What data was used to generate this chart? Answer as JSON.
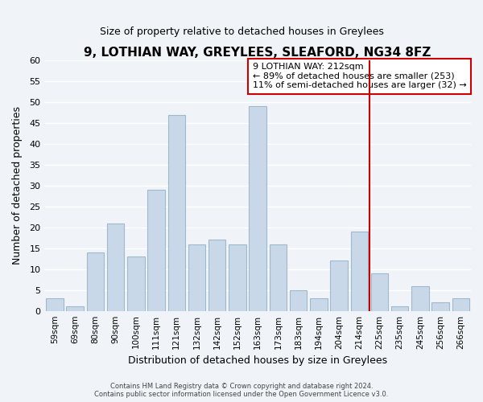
{
  "title": "9, LOTHIAN WAY, GREYLEES, SLEAFORD, NG34 8FZ",
  "subtitle": "Size of property relative to detached houses in Greylees",
  "xlabel": "Distribution of detached houses by size in Greylees",
  "ylabel": "Number of detached properties",
  "bar_labels": [
    "59sqm",
    "69sqm",
    "80sqm",
    "90sqm",
    "100sqm",
    "111sqm",
    "121sqm",
    "132sqm",
    "142sqm",
    "152sqm",
    "163sqm",
    "173sqm",
    "183sqm",
    "194sqm",
    "204sqm",
    "214sqm",
    "225sqm",
    "235sqm",
    "245sqm",
    "256sqm",
    "266sqm"
  ],
  "bar_values": [
    3,
    1,
    14,
    21,
    13,
    29,
    47,
    16,
    17,
    16,
    49,
    16,
    5,
    3,
    12,
    19,
    9,
    1,
    6,
    2,
    3
  ],
  "bar_color": "#c8d8e8",
  "bar_edgecolor": "#a0b8cc",
  "vline_x": 15.5,
  "vline_color": "#cc0000",
  "ylim": [
    0,
    60
  ],
  "yticks": [
    0,
    5,
    10,
    15,
    20,
    25,
    30,
    35,
    40,
    45,
    50,
    55,
    60
  ],
  "annotation_title": "9 LOTHIAN WAY: 212sqm",
  "annotation_line1": "← 89% of detached houses are smaller (253)",
  "annotation_line2": "11% of semi-detached houses are larger (32) →",
  "annotation_box_color": "#ffffff",
  "annotation_box_edgecolor": "#cc0000",
  "footer_line1": "Contains HM Land Registry data © Crown copyright and database right 2024.",
  "footer_line2": "Contains public sector information licensed under the Open Government Licence v3.0.",
  "background_color": "#f0f4f8",
  "grid_color": "#ffffff"
}
